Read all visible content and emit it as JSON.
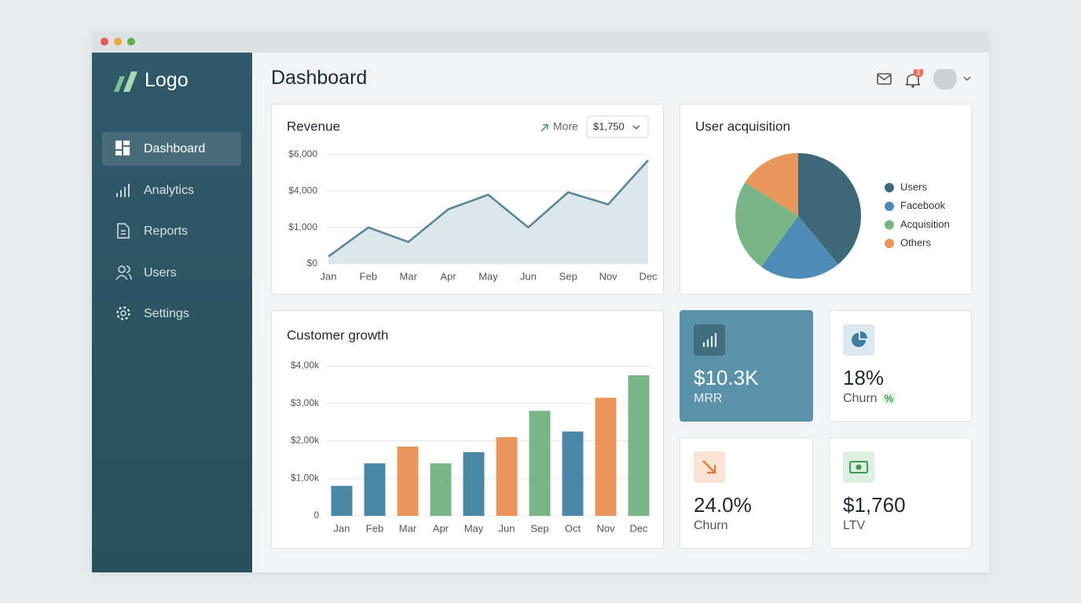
{
  "sidebar": {
    "logo": "Logo",
    "nav": [
      "Dashboard",
      "Analytics",
      "Reports",
      "Users",
      "Settings"
    ],
    "active": 0
  },
  "header": {
    "title": "Dashboard",
    "notifications": 1
  },
  "chart_data": [
    {
      "type": "line",
      "title": "Revenue",
      "link": "More",
      "selector": "$1,750",
      "categories": [
        "Jan",
        "Feb",
        "Mar",
        "Apr",
        "May",
        "Jun",
        "Sep",
        "Nov",
        "Dec"
      ],
      "values": [
        200,
        1000,
        600,
        2500,
        3700,
        1000,
        3900,
        2900,
        5700
      ],
      "color": "#5a8698",
      "area_color": "#dde7eb",
      "ylim": [
        0,
        6000
      ],
      "yticks": [
        {
          "value": 0,
          "label": "$0"
        },
        {
          "value": 1000,
          "label": "$1,000"
        },
        {
          "value": 4000,
          "label": "$4,000"
        },
        {
          "value": 6000,
          "label": "$6,000"
        }
      ],
      "grid": true
    },
    {
      "type": "bar",
      "title": "Customer growth",
      "categories": [
        "Jan",
        "Feb",
        "Mar",
        "Apr",
        "May",
        "Jun",
        "Sep",
        "Oct",
        "Nov",
        "Dec"
      ],
      "values": [
        800,
        1400,
        1850,
        1400,
        1700,
        2100,
        2800,
        2250,
        3150,
        3750
      ],
      "colors": [
        "#4b87a8",
        "#4b87a8",
        "#e8965a",
        "#79b685",
        "#4b87a8",
        "#e8965a",
        "#79b685",
        "#4b87a8",
        "#e8965a",
        "#79b685"
      ],
      "ylim": [
        0,
        4000
      ],
      "yticks": [
        0,
        {
          "value": 1000,
          "label": "$1,00k"
        },
        {
          "value": 2000,
          "label": "$2,00k"
        },
        {
          "value": 3000,
          "label": "$3,00k"
        },
        {
          "value": 4000,
          "label": "$4,00k"
        }
      ],
      "grid": true
    },
    {
      "type": "pie",
      "title": "User acquisition",
      "categories": [
        "Users",
        "Facebook",
        "Acquisition",
        "Others"
      ],
      "values": [
        39,
        21,
        24,
        16
      ],
      "colors": [
        "#3e6878",
        "#4f8cb5",
        "#79b685",
        "#e8965a"
      ],
      "legend": "right"
    }
  ],
  "kpis": [
    {
      "value": "$10.3K",
      "label": "MRR"
    },
    {
      "value": "18%",
      "label": "Churn",
      "badge": "%"
    },
    {
      "value": "24.0%",
      "label": "Churn"
    },
    {
      "value": "$1,760",
      "label": "LTV"
    }
  ]
}
